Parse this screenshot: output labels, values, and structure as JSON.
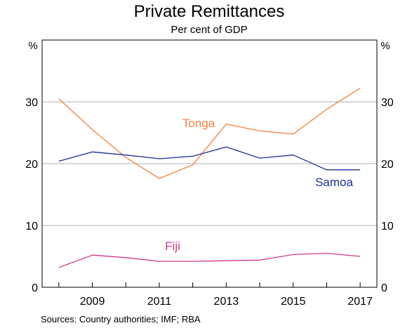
{
  "chart_data": {
    "type": "line",
    "title": "Private Remittances",
    "subtitle": "Per cent of GDP",
    "y_unit_left": "%",
    "y_unit_right": "%",
    "ylim": [
      0,
      40
    ],
    "xlim": [
      2007.5,
      2017.5
    ],
    "y_ticks": [
      0,
      10,
      20,
      30
    ],
    "x_ticks": [
      2009,
      2011,
      2013,
      2015,
      2017
    ],
    "grid": true,
    "x": [
      2008,
      2009,
      2010,
      2011,
      2012,
      2013,
      2014,
      2015,
      2016,
      2017
    ],
    "series": [
      {
        "name": "Tonga",
        "color": "#f5823c",
        "values": [
          30.5,
          25.5,
          21.0,
          17.6,
          19.8,
          26.4,
          25.3,
          24.8,
          28.8,
          32.2
        ]
      },
      {
        "name": "Samoa",
        "color": "#1f2d9e",
        "values": [
          20.4,
          21.9,
          21.4,
          20.8,
          21.2,
          22.7,
          20.9,
          21.4,
          19.0,
          19.0
        ]
      },
      {
        "name": "Fiji",
        "color": "#d2368c",
        "values": [
          3.2,
          5.2,
          4.8,
          4.2,
          4.2,
          4.3,
          4.4,
          5.3,
          5.5,
          5.0
        ]
      }
    ],
    "sources": "Sources:   Country authorities; IMF; RBA"
  }
}
